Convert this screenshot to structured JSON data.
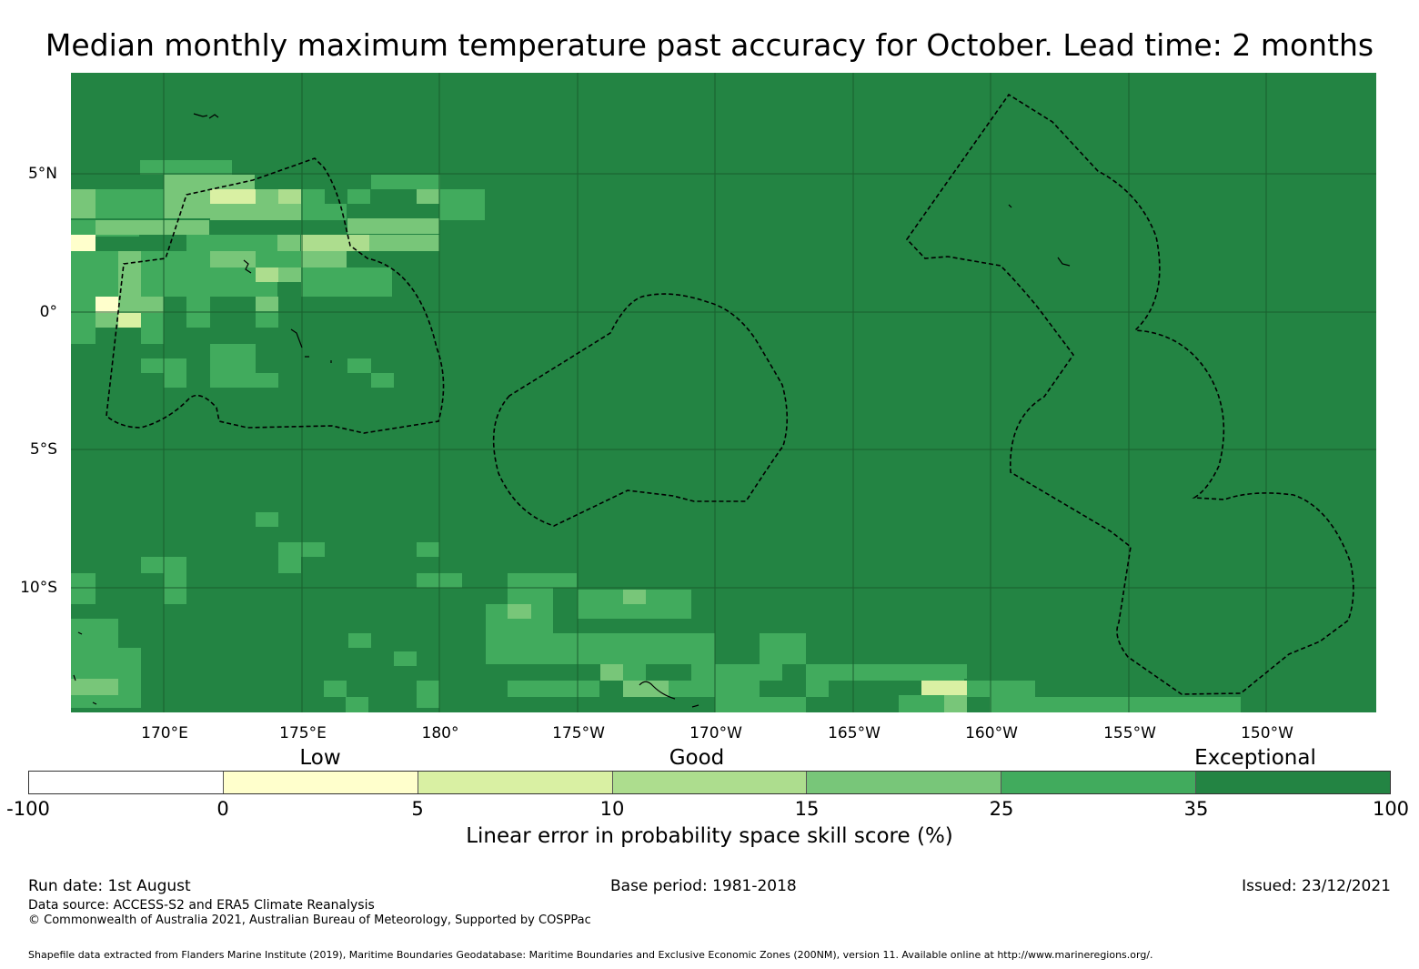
{
  "title": "Median monthly maximum temperature past accuracy for October. Lead time: 2 months",
  "map": {
    "lat_labels": [
      "5°N",
      "0°",
      "5°S",
      "10°S"
    ],
    "lon_labels": [
      "170°E",
      "175°E",
      "180°",
      "175°W",
      "170°W",
      "165°W",
      "160°W",
      "155°W",
      "150°W"
    ],
    "colors": {
      "exceptional_dark": "#238443",
      "good_high": "#41ab5d",
      "good_mid": "#78c679",
      "good_low": "#addd8e",
      "low_high": "#d9f0a3",
      "low_low": "#ffffcc",
      "none": "#ffffff",
      "outline": "#000000",
      "grid": "#1a5e2e"
    }
  },
  "legend": {
    "categories": [
      "Low",
      "Good",
      "Exceptional"
    ],
    "ticks": [
      "-100",
      "0",
      "5",
      "10",
      "15",
      "25",
      "35",
      "100"
    ],
    "colors": [
      "#ffffff",
      "#ffffcc",
      "#d9f0a3",
      "#addd8e",
      "#78c679",
      "#41ab5d",
      "#238443"
    ],
    "title": "Linear error in probability space skill score (%)"
  },
  "footer": {
    "run_date": "Run date: 1st August",
    "base_period": "Base period: 1981-2018",
    "issued": "Issued: 23/12/2021",
    "data_source": "Data source: ACCESS-S2 and ERA5 Climate Reanalysis",
    "copyright": "© Commonwealth of Australia 2021, Australian Bureau of Meteorology, Supported by COSPPac",
    "shapefile": "Shapefile data extracted from Flanders Marine Institute (2019), Maritime Boundaries Geodatabase: Maritime Boundaries and Exclusive Economic Zones (200NM), version 11. Available online at http://www.marineregions.org/."
  }
}
